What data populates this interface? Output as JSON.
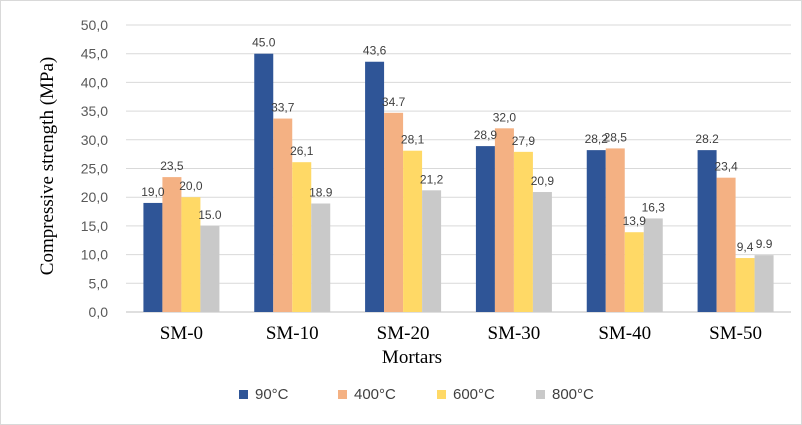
{
  "chart_data": {
    "type": "bar",
    "title": "",
    "xlabel": "Mortars",
    "ylabel": "Compressive strength (MPa)",
    "ylim": [
      0,
      50
    ],
    "ytick_labels": [
      "0,0",
      "5,0",
      "10,0",
      "15,0",
      "20,0",
      "25,0",
      "30,0",
      "35,0",
      "40,0",
      "45,0",
      "50,0"
    ],
    "categories": [
      "SM-0",
      "SM-10",
      "SM-20",
      "SM-30",
      "SM-40",
      "SM-50"
    ],
    "grid": true,
    "legend_position": "bottom",
    "series": [
      {
        "name": "90°C",
        "color": "#2f5597",
        "values": [
          19.0,
          45.0,
          43.6,
          28.9,
          28.2,
          28.2
        ],
        "labels": [
          "19,0",
          "45.0",
          "43,6",
          "28,9",
          "28,2",
          "28.2"
        ]
      },
      {
        "name": "400°C",
        "color": "#f4b183",
        "values": [
          23.5,
          33.7,
          34.7,
          32.0,
          28.5,
          23.4
        ],
        "labels": [
          "23,5",
          "33,7",
          "34.7",
          "32,0",
          "28,5",
          "23,4"
        ]
      },
      {
        "name": "600°C",
        "color": "#ffd966",
        "values": [
          20.0,
          26.1,
          28.1,
          27.9,
          13.9,
          9.4
        ],
        "labels": [
          "20,0",
          "26,1",
          "28,1",
          "27,9",
          "13,9",
          "9,4"
        ]
      },
      {
        "name": "800°C",
        "color": "#c9c9c9",
        "values": [
          15.0,
          18.9,
          21.2,
          20.9,
          16.3,
          9.9
        ],
        "labels": [
          "15.0",
          "18.9",
          "21,2",
          "20,9",
          "16,3",
          "9.9"
        ]
      }
    ]
  }
}
